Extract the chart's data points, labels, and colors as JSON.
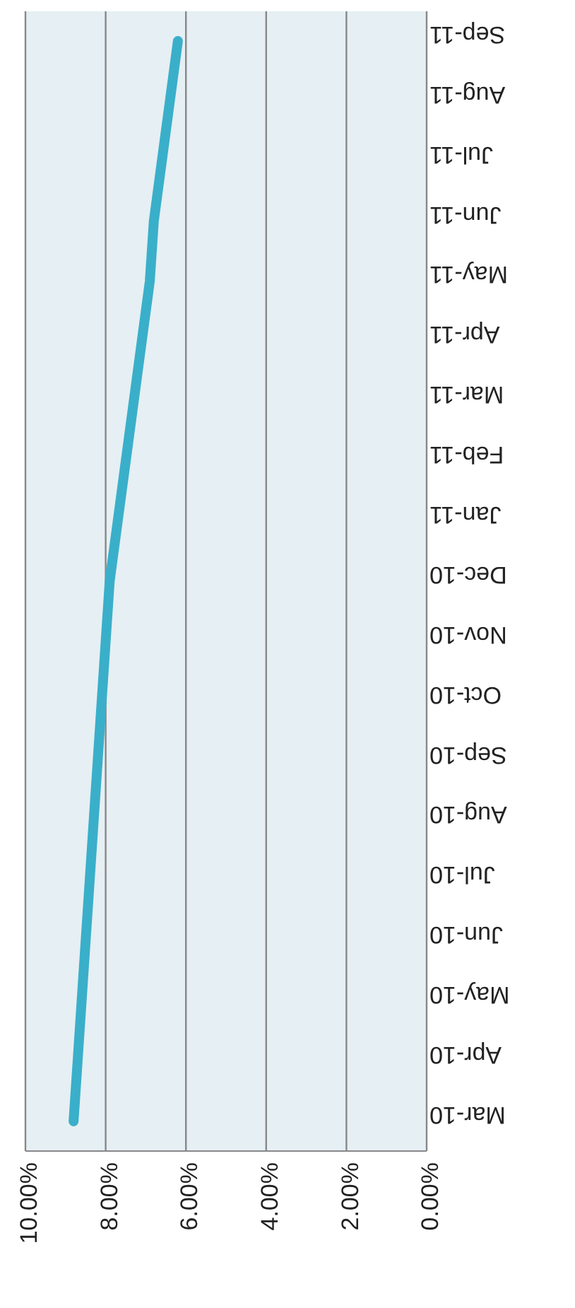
{
  "chart_data": {
    "type": "line",
    "orientation": "horizontal",
    "categories": [
      "Sep-11",
      "Aug-11",
      "Jul-11",
      "Jun-11",
      "May-11",
      "Apr-11",
      "Mar-11",
      "Feb-11",
      "Jan-11",
      "Dec-10",
      "Nov-10",
      "Oct-10",
      "Sep-10",
      "Aug-10",
      "Jul-10",
      "Jun-10",
      "May-10",
      "Apr-10",
      "Mar-10"
    ],
    "series": [
      {
        "color": "#3aafca",
        "values": [
          6.2,
          6.4,
          6.6,
          6.8,
          6.9,
          7.1,
          7.3,
          7.5,
          7.7,
          7.9,
          8.0,
          8.1,
          8.2,
          8.3,
          8.4,
          8.5,
          8.6,
          8.7,
          8.8
        ]
      }
    ],
    "xlim": [
      10,
      0
    ],
    "xticks": [
      {
        "value": 10,
        "label": "10.00%"
      },
      {
        "value": 8,
        "label": "8.00%"
      },
      {
        "value": 6,
        "label": "6.00%"
      },
      {
        "value": 4,
        "label": "4.00%"
      },
      {
        "value": 2,
        "label": "2.00%"
      },
      {
        "value": 0,
        "label": "0.00%"
      }
    ],
    "grid": "x",
    "legend": false,
    "marker": "none",
    "line_style": "solid"
  }
}
